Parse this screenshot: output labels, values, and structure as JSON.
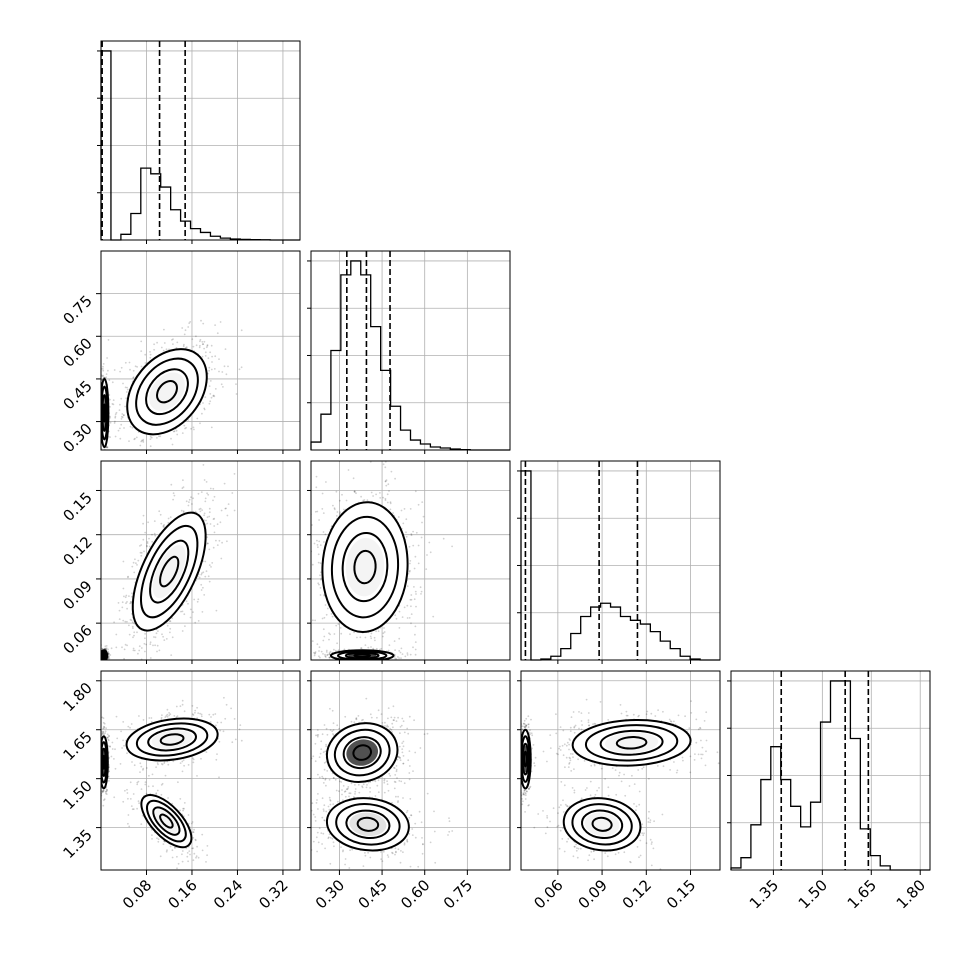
{
  "chart_data": {
    "type": "corner",
    "params": [
      {
        "id": "p0",
        "range": [
          0,
          0.35
        ],
        "ticks": [
          0.08,
          0.16,
          0.24,
          0.32
        ],
        "tick_labels": [
          "0.08",
          "0.16",
          "0.24",
          "0.32"
        ],
        "quantiles": [
          0.002,
          0.103,
          0.148
        ]
      },
      {
        "id": "p1",
        "range": [
          0.2,
          0.9
        ],
        "ticks": [
          0.3,
          0.45,
          0.6,
          0.75
        ],
        "tick_labels": [
          "0.30",
          "0.45",
          "0.60",
          "0.75"
        ],
        "quantiles": [
          0.326,
          0.395,
          0.478
        ]
      },
      {
        "id": "p2",
        "range": [
          0.035,
          0.17
        ],
        "ticks": [
          0.06,
          0.09,
          0.12,
          0.15
        ],
        "tick_labels": [
          "0.06",
          "0.09",
          "0.12",
          "0.15"
        ],
        "quantiles": [
          0.038,
          0.088,
          0.114
        ]
      },
      {
        "id": "p3",
        "range": [
          1.22,
          1.83
        ],
        "ticks": [
          1.35,
          1.5,
          1.65,
          1.8
        ],
        "tick_labels": [
          "1.35",
          "1.50",
          "1.65",
          "1.80"
        ],
        "quantiles": [
          1.374,
          1.57,
          1.641
        ]
      }
    ],
    "histograms": [
      {
        "param": 0,
        "edges_start": 0,
        "edges_step": 0.0175,
        "counts": [
          100,
          0,
          3,
          14,
          38,
          35,
          28,
          16,
          10,
          6,
          4,
          2,
          1,
          0.5,
          0.3,
          0.2,
          0.1,
          0,
          0,
          0
        ]
      },
      {
        "param": 1,
        "edges_start": 0.2,
        "edges_step": 0.035,
        "counts": [
          4,
          18,
          50,
          88,
          95,
          88,
          62,
          40,
          22,
          10,
          5,
          3,
          1.5,
          1,
          0.5,
          0.2,
          0,
          0,
          0,
          0
        ]
      },
      {
        "param": 2,
        "edges_start": 0.035,
        "edges_step": 0.00675,
        "counts": [
          100,
          0,
          0.5,
          2,
          6,
          14,
          23,
          28,
          30,
          28,
          23,
          21,
          19,
          15,
          10,
          6,
          2,
          0.5,
          0,
          0
        ]
      },
      {
        "param": 3,
        "edges_start": 1.22,
        "edges_step": 0.0305,
        "counts": [
          1,
          6,
          22,
          44,
          60,
          44,
          31,
          21,
          33,
          72,
          92,
          92,
          64,
          20,
          7,
          2,
          0,
          0,
          0,
          0
        ]
      }
    ],
    "pairs": [
      {
        "x": 0,
        "y": 1,
        "modes": [
          {
            "mx": 0.116,
            "my": 0.405,
            "sx": 0.035,
            "sy": 0.075,
            "rho": 0.35,
            "w": 0.62,
            "core": "#f2f2f2"
          },
          {
            "mx": 0.006,
            "my": 0.33,
            "sx": 0.0035,
            "sy": 0.06,
            "rho": 0.0,
            "w": 0.38,
            "core": "#555555"
          }
        ]
      },
      {
        "x": 0,
        "y": 2,
        "modes": [
          {
            "mx": 0.12,
            "my": 0.095,
            "sx": 0.032,
            "sy": 0.02,
            "rho": 0.6,
            "w": 0.72,
            "core": "#f2f2f2"
          },
          {
            "mx": 0.005,
            "my": 0.038,
            "sx": 0.003,
            "sy": 0.0018,
            "rho": 0.0,
            "w": 0.28,
            "core": "#333333"
          }
        ]
      },
      {
        "x": 0,
        "y": 3,
        "modes": [
          {
            "mx": 0.125,
            "my": 1.62,
            "sx": 0.04,
            "sy": 0.032,
            "rho": 0.25,
            "w": 0.4,
            "core": "#f2f2f2"
          },
          {
            "mx": 0.115,
            "my": 1.37,
            "sx": 0.022,
            "sy": 0.04,
            "rho": -0.65,
            "w": 0.3,
            "core": "#f2f2f2"
          },
          {
            "mx": 0.005,
            "my": 1.55,
            "sx": 0.0035,
            "sy": 0.04,
            "rho": 0.0,
            "w": 0.3,
            "core": "#333333"
          }
        ]
      },
      {
        "x": 1,
        "y": 2,
        "modes": [
          {
            "mx": 0.39,
            "my": 0.098,
            "sx": 0.075,
            "sy": 0.022,
            "rho": 0.05,
            "w": 0.72,
            "core": "#f2f2f2"
          },
          {
            "mx": 0.38,
            "my": 0.038,
            "sx": 0.055,
            "sy": 0.0018,
            "rho": 0.0,
            "w": 0.28,
            "core": "#222222"
          }
        ]
      },
      {
        "x": 1,
        "y": 3,
        "modes": [
          {
            "mx": 0.38,
            "my": 1.58,
            "sx": 0.062,
            "sy": 0.045,
            "rho": 0.1,
            "w": 0.55,
            "core": "#333333"
          },
          {
            "mx": 0.4,
            "my": 1.36,
            "sx": 0.072,
            "sy": 0.04,
            "rho": -0.1,
            "w": 0.45,
            "core": "#dddddd"
          }
        ]
      },
      {
        "x": 2,
        "y": 3,
        "modes": [
          {
            "mx": 0.11,
            "my": 1.61,
            "sx": 0.02,
            "sy": 0.035,
            "rho": 0.1,
            "w": 0.42,
            "core": "#f2f2f2"
          },
          {
            "mx": 0.09,
            "my": 1.36,
            "sx": 0.013,
            "sy": 0.04,
            "rho": -0.1,
            "w": 0.3,
            "core": "#f2f2f2"
          },
          {
            "mx": 0.038,
            "my": 1.56,
            "sx": 0.0018,
            "sy": 0.045,
            "rho": 0.0,
            "w": 0.28,
            "core": "#333333"
          }
        ]
      }
    ],
    "grid": true,
    "title": "",
    "xlabel": "",
    "ylabel": ""
  }
}
